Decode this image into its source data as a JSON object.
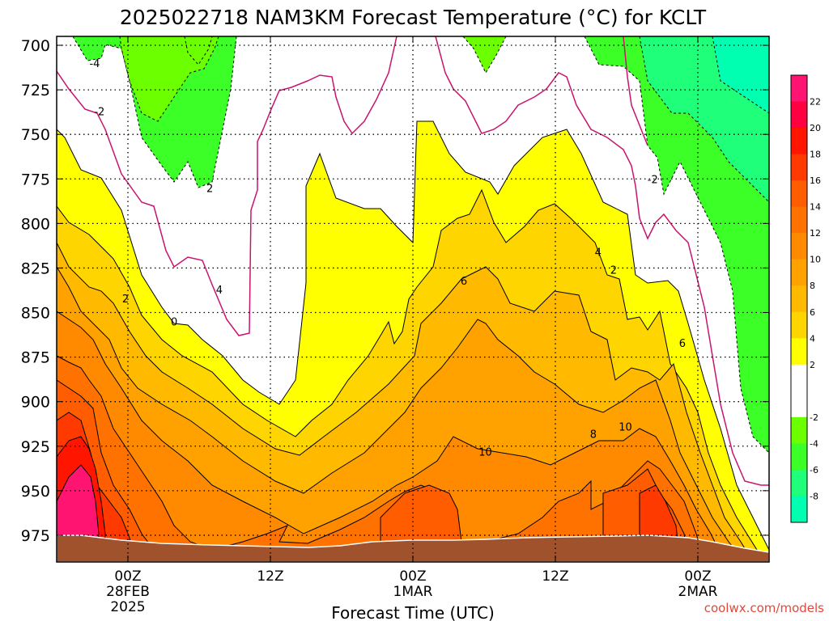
{
  "chart_data": {
    "type": "heatmap",
    "title": "2025022718 NAM3KM Forecast Temperature (°C) for KCLT",
    "xlabel": "Forecast Time (UTC)",
    "ylabel": "",
    "watermark": "coolwx.com/models",
    "y_ticks": [
      "700",
      "725",
      "750",
      "775",
      "800",
      "825",
      "850",
      "875",
      "900",
      "925",
      "950",
      "975"
    ],
    "y_values": [
      700,
      725,
      750,
      775,
      800,
      825,
      850,
      875,
      900,
      925,
      950,
      975
    ],
    "ylim": [
      695,
      990
    ],
    "x_ticks": [
      {
        "label": [
          "00Z",
          "28FEB",
          "2025"
        ],
        "hour": 6
      },
      {
        "label": [
          "12Z"
        ],
        "hour": 18
      },
      {
        "label": [
          "00Z",
          "1MAR"
        ],
        "hour": 30
      },
      {
        "label": [
          "12Z"
        ],
        "hour": 42
      },
      {
        "label": [
          "00Z",
          "2MAR"
        ],
        "hour": 54
      }
    ],
    "xlim": [
      0,
      60
    ],
    "xlim_labels": [
      "2025-02-27 18Z",
      "2025-03-02 06Z"
    ],
    "grid": true,
    "colorbar": {
      "bins": [
        {
          "lo": 22,
          "hi": 24,
          "color": "#ff1472"
        },
        {
          "lo": 20,
          "hi": 22,
          "color": "#ff0040"
        },
        {
          "lo": 18,
          "hi": 20,
          "color": "#ff1500"
        },
        {
          "lo": 16,
          "hi": 18,
          "color": "#ff3a00"
        },
        {
          "lo": 14,
          "hi": 16,
          "color": "#ff5d00"
        },
        {
          "lo": 12,
          "hi": 14,
          "color": "#ff7200"
        },
        {
          "lo": 10,
          "hi": 12,
          "color": "#ff8a00"
        },
        {
          "lo": 8,
          "hi": 10,
          "color": "#ffa200"
        },
        {
          "lo": 6,
          "hi": 8,
          "color": "#ffba00"
        },
        {
          "lo": 4,
          "hi": 6,
          "color": "#ffd500"
        },
        {
          "lo": 2,
          "hi": 4,
          "color": "#ffff00"
        },
        {
          "lo": 0,
          "hi": 2,
          "color": "#ffffff"
        },
        {
          "lo": -2,
          "hi": 0,
          "color": "#ffffff"
        },
        {
          "lo": -4,
          "hi": -2,
          "color": "#6cff00"
        },
        {
          "lo": -6,
          "hi": -4,
          "color": "#3dff28"
        },
        {
          "lo": -8,
          "hi": -6,
          "color": "#20ff7a"
        },
        {
          "lo": -10,
          "hi": -8,
          "color": "#00ffb0"
        }
      ],
      "tick_labels": [
        "22",
        "20",
        "18",
        "16",
        "14",
        "12",
        "10",
        "8",
        "6",
        "4",
        "2",
        "-2",
        "-4",
        "-6",
        "-8"
      ]
    },
    "contour_labels": [
      {
        "text": "-4",
        "hour": 3.2,
        "p": 710
      },
      {
        "text": "-2",
        "hour": 3.6,
        "p": 737
      },
      {
        "text": "2",
        "hour": 12.9,
        "p": 780
      },
      {
        "text": "2",
        "hour": 5.8,
        "p": 842
      },
      {
        "text": "0",
        "hour": 9.9,
        "p": 855
      },
      {
        "text": "4",
        "hour": 13.7,
        "p": 837
      },
      {
        "text": "6",
        "hour": 34.3,
        "p": 832
      },
      {
        "text": "4",
        "hour": 45.6,
        "p": 816
      },
      {
        "text": "2",
        "hour": 46.9,
        "p": 826
      },
      {
        "text": "-2",
        "hour": 50.2,
        "p": 775
      },
      {
        "text": "6",
        "hour": 52.7,
        "p": 867
      },
      {
        "text": "8",
        "hour": 45.2,
        "p": 918
      },
      {
        "text": "10",
        "hour": 47.9,
        "p": 914
      },
      {
        "text": "10",
        "hour": 36.1,
        "p": 928
      }
    ]
  },
  "colors": {
    "ground": "#a0522d",
    "freezing_line": "#c8146e",
    "frame": "#000000",
    "watermark": "#e0483e"
  }
}
